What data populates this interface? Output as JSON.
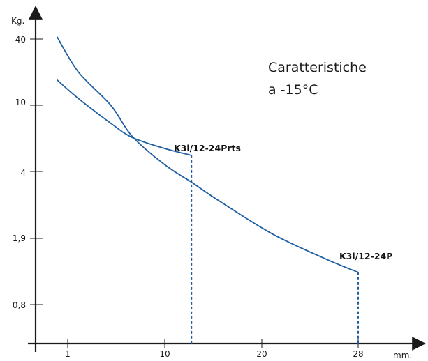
{
  "chart_data": {
    "type": "line",
    "title": "",
    "xlabel": "mm.",
    "ylabel": "Kg.",
    "annotation": [
      "Caratteristiche",
      "a -15°C"
    ],
    "x_ticks": [
      "1",
      "10",
      "20",
      "28"
    ],
    "y_ticks": [
      "40",
      "10",
      "4",
      "1,9",
      "0,8"
    ],
    "grid": false,
    "colors": {
      "series": "#1f5fa3",
      "axis": "#1a1a1a"
    },
    "series": [
      {
        "name": "K3i/12-24Prts",
        "x": [
          "0",
          "2",
          "5",
          "7",
          "10",
          "12.5"
        ],
        "y": [
          17,
          11.5,
          7.8,
          6.4,
          5.5,
          5.0
        ],
        "end_drop_line": true
      },
      {
        "name": "K3i/12-24P",
        "x": [
          "0",
          "2",
          "5",
          "7",
          "10",
          "12.5",
          "15",
          "20",
          "25",
          "28"
        ],
        "y": [
          42,
          20,
          10,
          6.5,
          4.4,
          3.55,
          2.9,
          2.0,
          1.45,
          1.22
        ],
        "end_drop_line": true
      }
    ]
  }
}
